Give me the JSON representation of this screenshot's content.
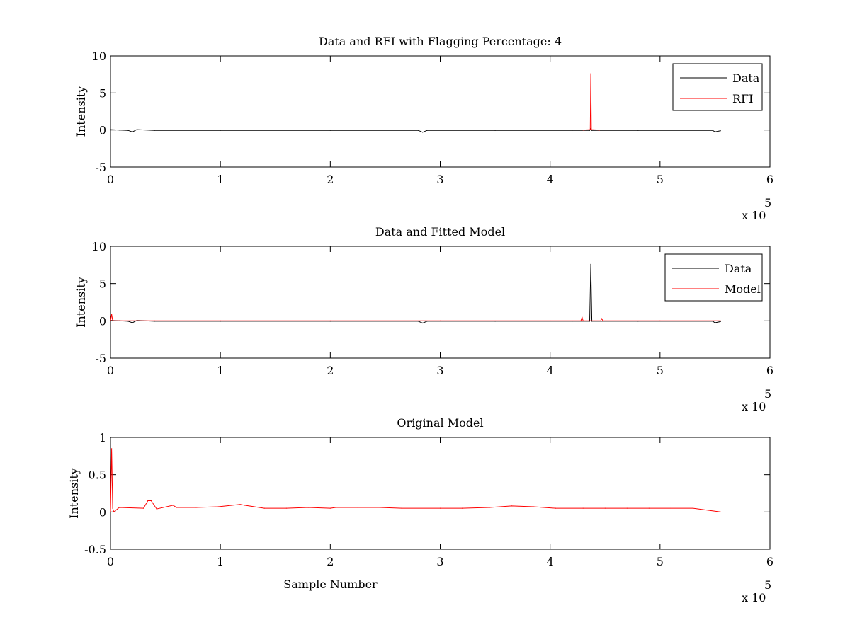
{
  "chart_data": [
    {
      "type": "line",
      "title": "Data and RFI with Flagging Percentage: 4",
      "xlabel": "",
      "ylabel": "Intensity",
      "xlim": [
        0,
        600000
      ],
      "ylim": [
        -5,
        10
      ],
      "x_ticks": [
        0,
        100000,
        200000,
        300000,
        400000,
        500000,
        600000
      ],
      "x_tick_labels": [
        "0",
        "1",
        "2",
        "3",
        "4",
        "5",
        "6"
      ],
      "y_ticks": [
        -5,
        0,
        5,
        10
      ],
      "y_tick_labels": [
        "-5",
        "0",
        "5",
        "10"
      ],
      "x_multiplier": {
        "base": "x 10",
        "exponent": "5"
      },
      "legend": {
        "position": "top-right",
        "entries": [
          "Data",
          "RFI"
        ]
      },
      "grid": false,
      "series": [
        {
          "name": "Data",
          "color": "#000000",
          "points": [
            [
              0,
              0.05
            ],
            [
              8000,
              0.0
            ],
            [
              16000,
              -0.05
            ],
            [
              20000,
              -0.25
            ],
            [
              24000,
              0.05
            ],
            [
              40000,
              -0.05
            ],
            [
              100000,
              -0.05
            ],
            [
              200000,
              -0.05
            ],
            [
              280000,
              -0.05
            ],
            [
              284000,
              -0.3
            ],
            [
              288000,
              -0.05
            ],
            [
              350000,
              -0.05
            ],
            [
              420000,
              -0.05
            ],
            [
              436000,
              -0.05
            ],
            [
              437000,
              0.2
            ],
            [
              438000,
              -0.05
            ],
            [
              480000,
              -0.05
            ],
            [
              548000,
              -0.05
            ],
            [
              550000,
              -0.25
            ],
            [
              555000,
              -0.1
            ]
          ]
        },
        {
          "name": "RFI",
          "color": "#ff0000",
          "points": [
            [
              430000,
              0.0
            ],
            [
              436500,
              0.05
            ],
            [
              437000,
              7.6
            ],
            [
              437500,
              0.05
            ],
            [
              445000,
              0.0
            ]
          ]
        }
      ]
    },
    {
      "type": "line",
      "title": "Data and Fitted Model",
      "xlabel": "",
      "ylabel": "Intensity",
      "xlim": [
        0,
        600000
      ],
      "ylim": [
        -5,
        10
      ],
      "x_ticks": [
        0,
        100000,
        200000,
        300000,
        400000,
        500000,
        600000
      ],
      "x_tick_labels": [
        "0",
        "1",
        "2",
        "3",
        "4",
        "5",
        "6"
      ],
      "y_ticks": [
        -5,
        0,
        5,
        10
      ],
      "y_tick_labels": [
        "-5",
        "0",
        "5",
        "10"
      ],
      "x_multiplier": {
        "base": "x 10",
        "exponent": "5"
      },
      "legend": {
        "position": "top-right",
        "entries": [
          "Data",
          "Model"
        ]
      },
      "grid": false,
      "series": [
        {
          "name": "Data",
          "color": "#000000",
          "points": [
            [
              0,
              0.05
            ],
            [
              8000,
              0.0
            ],
            [
              16000,
              -0.05
            ],
            [
              20000,
              -0.25
            ],
            [
              24000,
              0.05
            ],
            [
              40000,
              -0.05
            ],
            [
              100000,
              -0.05
            ],
            [
              200000,
              -0.05
            ],
            [
              280000,
              -0.05
            ],
            [
              284000,
              -0.3
            ],
            [
              288000,
              -0.05
            ],
            [
              350000,
              -0.05
            ],
            [
              420000,
              -0.05
            ],
            [
              436000,
              -0.05
            ],
            [
              437000,
              7.6
            ],
            [
              438000,
              -0.05
            ],
            [
              480000,
              -0.05
            ],
            [
              548000,
              -0.05
            ],
            [
              550000,
              -0.25
            ],
            [
              555000,
              -0.1
            ]
          ]
        },
        {
          "name": "Model",
          "color": "#ff0000",
          "points": [
            [
              0,
              0.0
            ],
            [
              1000,
              0.9
            ],
            [
              2000,
              0.0
            ],
            [
              40000,
              0.0
            ],
            [
              100000,
              0.0
            ],
            [
              200000,
              0.0
            ],
            [
              300000,
              0.0
            ],
            [
              400000,
              0.0
            ],
            [
              428000,
              0.0
            ],
            [
              429000,
              0.5
            ],
            [
              430000,
              0.0
            ],
            [
              440000,
              0.0
            ],
            [
              446000,
              0.0
            ],
            [
              447000,
              0.3
            ],
            [
              448000,
              0.0
            ],
            [
              500000,
              0.0
            ],
            [
              555000,
              0.0
            ]
          ]
        }
      ]
    },
    {
      "type": "line",
      "title": "Original Model",
      "xlabel": "Sample Number",
      "ylabel": "Intensity",
      "xlim": [
        0,
        600000
      ],
      "ylim": [
        -0.5,
        1
      ],
      "x_ticks": [
        0,
        100000,
        200000,
        300000,
        400000,
        500000,
        600000
      ],
      "x_tick_labels": [
        "0",
        "1",
        "2",
        "3",
        "4",
        "5",
        "6"
      ],
      "y_ticks": [
        -0.5,
        0,
        0.5,
        1
      ],
      "y_tick_labels": [
        "-0.5",
        "0",
        "0.5",
        "1"
      ],
      "x_multiplier": {
        "base": "x 10",
        "exponent": "5"
      },
      "legend": null,
      "grid": false,
      "series": [
        {
          "name": "Model",
          "color": "#ff0000",
          "points": [
            [
              0,
              0.0
            ],
            [
              1000,
              0.85
            ],
            [
              2000,
              0.05
            ],
            [
              3000,
              0.0
            ],
            [
              8000,
              0.06
            ],
            [
              30000,
              0.05
            ],
            [
              34000,
              0.15
            ],
            [
              37000,
              0.15
            ],
            [
              42000,
              0.04
            ],
            [
              57000,
              0.09
            ],
            [
              60000,
              0.06
            ],
            [
              78000,
              0.06
            ],
            [
              98000,
              0.07
            ],
            [
              118000,
              0.1
            ],
            [
              122000,
              0.09
            ],
            [
              140000,
              0.05
            ],
            [
              160000,
              0.05
            ],
            [
              180000,
              0.06
            ],
            [
              200000,
              0.05
            ],
            [
              205000,
              0.06
            ],
            [
              225000,
              0.06
            ],
            [
              245000,
              0.06
            ],
            [
              265000,
              0.05
            ],
            [
              300000,
              0.05
            ],
            [
              320000,
              0.05
            ],
            [
              345000,
              0.06
            ],
            [
              365000,
              0.08
            ],
            [
              385000,
              0.07
            ],
            [
              405000,
              0.05
            ],
            [
              430000,
              0.05
            ],
            [
              450000,
              0.05
            ],
            [
              470000,
              0.05
            ],
            [
              490000,
              0.05
            ],
            [
              510000,
              0.05
            ],
            [
              530000,
              0.05
            ],
            [
              555000,
              0.0
            ]
          ]
        }
      ]
    }
  ]
}
